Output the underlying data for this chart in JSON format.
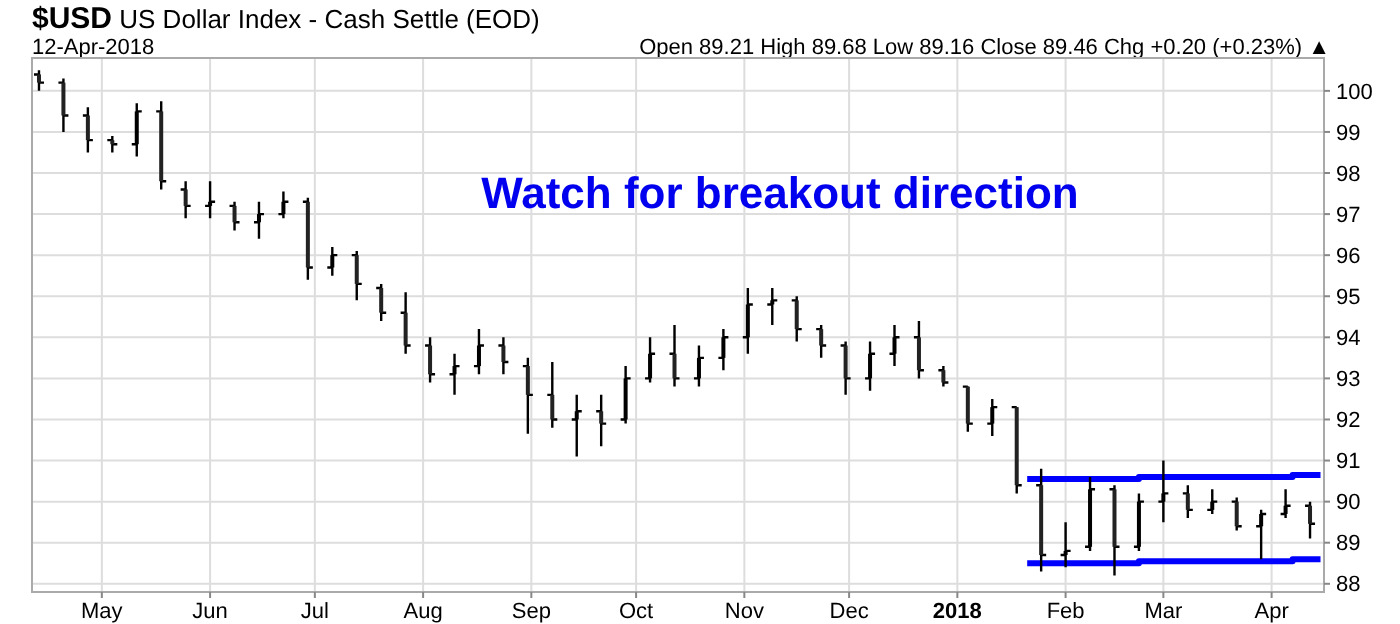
{
  "chart_data": {
    "type": "candlestick",
    "title": "$USD US Dollar Index - Cash Settle (EOD)",
    "subtitle": "12-Apr-2018",
    "annotations": [
      "Open 89.21  High 89.68  Low 89.16  Close 89.46  Chg +0.20 (+0.23%) ▲",
      "Watch for breakout direction"
    ],
    "x": [
      "2017-04-13",
      "2017-04-20",
      "2017-04-27",
      "2017-05-04",
      "2017-05-11",
      "2017-05-18",
      "2017-05-25",
      "2017-06-01",
      "2017-06-08",
      "2017-06-15",
      "2017-06-22",
      "2017-06-29",
      "2017-07-06",
      "2017-07-13",
      "2017-07-20",
      "2017-07-27",
      "2017-08-03",
      "2017-08-10",
      "2017-08-17",
      "2017-08-24",
      "2017-08-31",
      "2017-09-07",
      "2017-09-14",
      "2017-09-21",
      "2017-09-28",
      "2017-10-05",
      "2017-10-12",
      "2017-10-19",
      "2017-10-26",
      "2017-11-02",
      "2017-11-09",
      "2017-11-16",
      "2017-11-23",
      "2017-11-30",
      "2017-12-07",
      "2017-12-14",
      "2017-12-21",
      "2017-12-28",
      "2018-01-04",
      "2018-01-11",
      "2018-01-18",
      "2018-01-25",
      "2018-02-01",
      "2018-02-08",
      "2018-02-15",
      "2018-02-22",
      "2018-03-01",
      "2018-03-08",
      "2018-03-15",
      "2018-03-22",
      "2018-03-29",
      "2018-04-05",
      "2018-04-12"
    ],
    "ohlc": [
      [
        100.4,
        100.5,
        100.0,
        100.2
      ],
      [
        100.2,
        100.3,
        99.0,
        99.4
      ],
      [
        99.4,
        99.6,
        98.5,
        98.8
      ],
      [
        98.8,
        98.9,
        98.5,
        98.7
      ],
      [
        98.7,
        99.7,
        98.4,
        99.5
      ],
      [
        99.5,
        99.75,
        97.6,
        97.8
      ],
      [
        97.6,
        97.8,
        96.9,
        97.2
      ],
      [
        97.2,
        97.8,
        96.9,
        97.3
      ],
      [
        97.2,
        97.3,
        96.6,
        96.8
      ],
      [
        96.8,
        97.3,
        96.4,
        97.0
      ],
      [
        97.0,
        97.55,
        96.9,
        97.3
      ],
      [
        97.3,
        97.4,
        95.4,
        95.7
      ],
      [
        95.7,
        96.2,
        95.5,
        96.0
      ],
      [
        96.0,
        96.1,
        94.9,
        95.3
      ],
      [
        95.2,
        95.3,
        94.4,
        94.6
      ],
      [
        94.6,
        95.1,
        93.6,
        93.8
      ],
      [
        93.8,
        94.0,
        92.9,
        93.1
      ],
      [
        93.1,
        93.6,
        92.6,
        93.3
      ],
      [
        93.3,
        94.2,
        93.1,
        93.8
      ],
      [
        93.8,
        94.0,
        93.1,
        93.4
      ],
      [
        93.3,
        93.5,
        91.65,
        92.6
      ],
      [
        92.6,
        93.4,
        91.8,
        92.0
      ],
      [
        92.0,
        92.6,
        91.1,
        92.2
      ],
      [
        92.2,
        92.6,
        91.35,
        91.9
      ],
      [
        92.0,
        93.3,
        91.9,
        93.0
      ],
      [
        93.0,
        94.0,
        92.9,
        93.6
      ],
      [
        93.6,
        94.3,
        92.8,
        93.0
      ],
      [
        93.0,
        93.8,
        92.8,
        93.5
      ],
      [
        93.5,
        94.2,
        93.2,
        94.0
      ],
      [
        94.0,
        95.2,
        93.6,
        94.8
      ],
      [
        94.8,
        95.2,
        94.3,
        94.9
      ],
      [
        94.9,
        95.0,
        93.9,
        94.2
      ],
      [
        94.2,
        94.3,
        93.5,
        93.8
      ],
      [
        93.8,
        93.9,
        92.6,
        93.0
      ],
      [
        93.0,
        93.9,
        92.7,
        93.6
      ],
      [
        93.6,
        94.3,
        93.3,
        94.0
      ],
      [
        94.0,
        94.4,
        93.0,
        93.2
      ],
      [
        93.2,
        93.3,
        92.8,
        92.9
      ],
      [
        92.8,
        92.8,
        91.7,
        91.9
      ],
      [
        91.9,
        92.5,
        91.6,
        92.3
      ],
      [
        92.3,
        92.3,
        90.2,
        90.4
      ],
      [
        90.4,
        90.8,
        88.3,
        88.7
      ],
      [
        88.7,
        89.5,
        88.4,
        88.8
      ],
      [
        88.9,
        90.6,
        88.8,
        90.3
      ],
      [
        90.3,
        90.4,
        88.2,
        88.9
      ],
      [
        88.9,
        90.2,
        88.8,
        90.0
      ],
      [
        90.0,
        91.0,
        89.5,
        90.2
      ],
      [
        90.2,
        90.4,
        89.6,
        89.8
      ],
      [
        89.8,
        90.3,
        89.7,
        90.0
      ],
      [
        90.0,
        90.1,
        89.3,
        89.4
      ],
      [
        89.4,
        89.8,
        88.6,
        89.7
      ],
      [
        89.7,
        90.3,
        89.6,
        89.9
      ],
      [
        89.9,
        90.0,
        89.1,
        89.46
      ]
    ],
    "series": [
      {
        "type": "line",
        "color": "#0000ff",
        "x": [
          "2018-01-21",
          "2018-02-22",
          "2018-02-22",
          "2018-04-07",
          "2018-04-07",
          "2018-04-15"
        ],
        "values": [
          90.55,
          90.55,
          90.6,
          90.6,
          90.65,
          90.65
        ]
      },
      {
        "type": "line",
        "color": "#0000ff",
        "x": [
          "2018-01-21",
          "2018-02-22",
          "2018-02-22",
          "2018-04-07",
          "2018-04-07",
          "2018-04-15"
        ],
        "values": [
          88.5,
          88.5,
          88.55,
          88.55,
          88.6,
          88.6
        ]
      }
    ],
    "xlim": [
      "2017-04-11",
      "2018-04-16"
    ],
    "xticks": [
      {
        "value": "2017-05-01",
        "label": "May"
      },
      {
        "value": "2017-06-01",
        "label": "Jun"
      },
      {
        "value": "2017-07-01",
        "label": "Jul"
      },
      {
        "value": "2017-08-01",
        "label": "Aug"
      },
      {
        "value": "2017-09-01",
        "label": "Sep"
      },
      {
        "value": "2017-10-01",
        "label": "Oct"
      },
      {
        "value": "2017-11-01",
        "label": "Nov"
      },
      {
        "value": "2017-12-01",
        "label": "Dec"
      },
      {
        "value": "2018-01-01",
        "label": "2018"
      },
      {
        "value": "2018-02-01",
        "label": "Feb"
      },
      {
        "value": "2018-03-01",
        "label": "Mar"
      },
      {
        "value": "2018-04-01",
        "label": "Apr"
      }
    ],
    "ylim": [
      87.8,
      100.8
    ],
    "yticks": [
      88,
      89,
      90,
      91,
      92,
      93,
      94,
      95,
      96,
      97,
      98,
      99,
      100
    ],
    "grid": true,
    "line_style": "solid"
  }
}
